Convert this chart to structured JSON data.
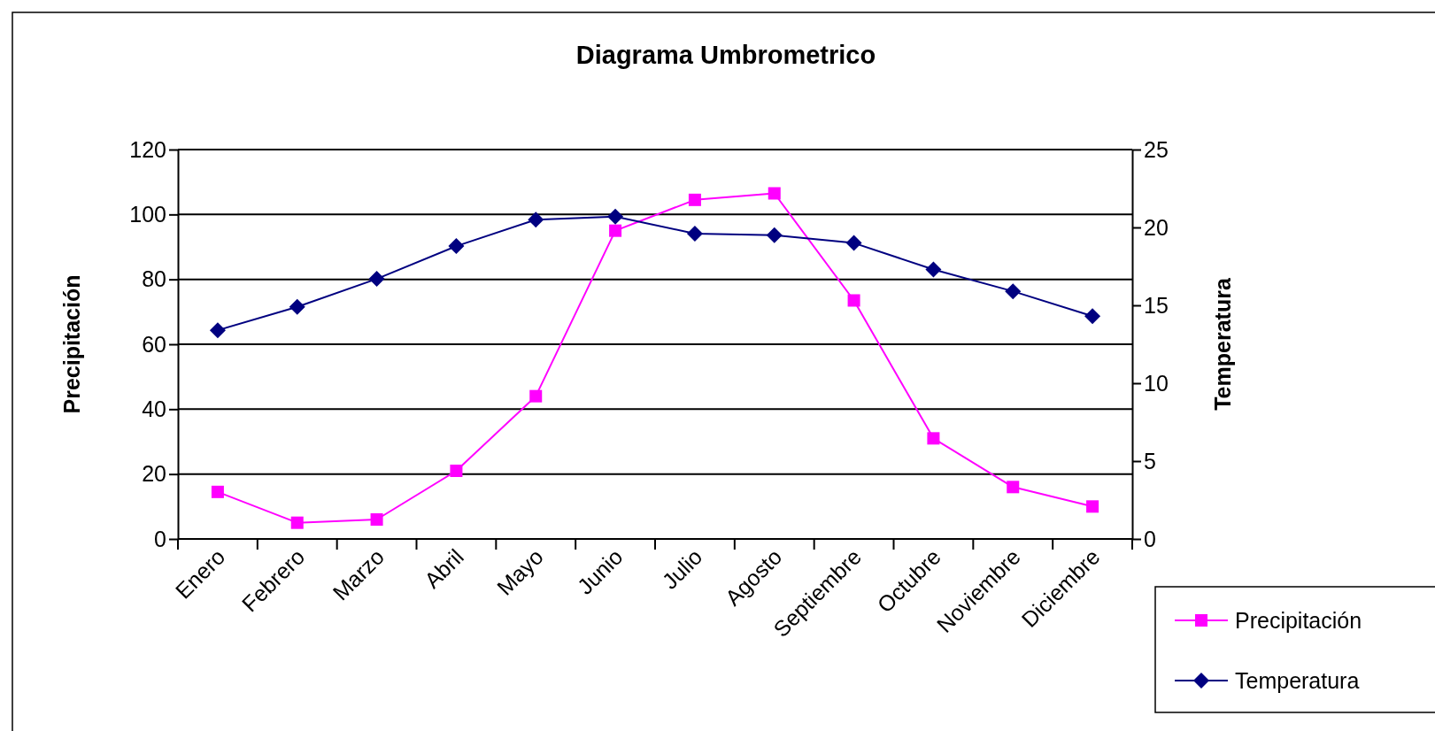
{
  "chart_data": {
    "type": "line",
    "title": "Diagrama Umbrometrico",
    "ylabel": "Precipitación",
    "y2label": "Temperatura",
    "categories": [
      "Enero",
      "Febrero",
      "Marzo",
      "Abril",
      "Mayo",
      "Junio",
      "Julio",
      "Agosto",
      "Septiembre",
      "Octubre",
      "Noviembre",
      "Diciembre"
    ],
    "series": [
      {
        "name": "Precipitación",
        "color": "#ff00ff",
        "marker": "square",
        "values": [
          14.5,
          5,
          6,
          21,
          44,
          95,
          104.5,
          106.5,
          73.5,
          31,
          16,
          10
        ]
      },
      {
        "name": "Temperatura",
        "color": "#000080",
        "marker": "diamond",
        "axis": "y2",
        "values": [
          13.4,
          14.9,
          16.7,
          18.8,
          20.5,
          20.7,
          19.6,
          19.5,
          19.0,
          17.3,
          15.9,
          14.3
        ]
      }
    ],
    "ylim": [
      0,
      120
    ],
    "yticks": [
      0,
      20,
      40,
      60,
      80,
      100,
      120
    ],
    "y2lim": [
      0,
      25
    ],
    "y2ticks": [
      0,
      5,
      10,
      15,
      20,
      25
    ],
    "grid": "y",
    "legend": "bottom right"
  }
}
